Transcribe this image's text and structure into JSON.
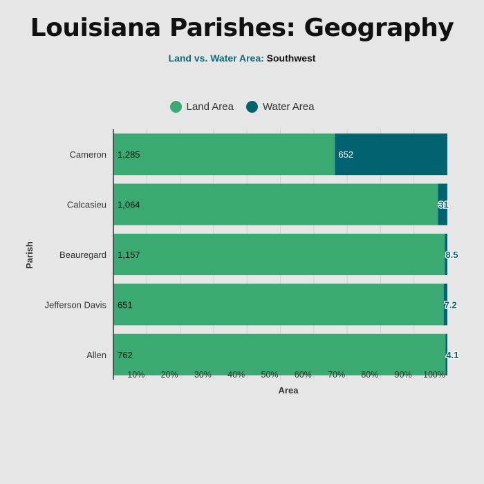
{
  "title": "Louisiana Parishes: Geography",
  "subtitle": {
    "prefix": "Land vs. Water Area:",
    "region": "Southwest"
  },
  "legend": [
    {
      "label": "Land Area",
      "color": "#3aa972"
    },
    {
      "label": "Water Area",
      "color": "#03626f"
    }
  ],
  "chart_data": {
    "type": "bar",
    "orientation": "horizontal",
    "stacked": "percent",
    "categories": [
      "Cameron",
      "Calcasieu",
      "Beauregard",
      "Jefferson Davis",
      "Allen"
    ],
    "series": [
      {
        "name": "Land Area",
        "values": [
          1285,
          1064,
          1157,
          651,
          762
        ],
        "labels": [
          "1,285",
          "1,064",
          "1,157",
          "651",
          "762"
        ],
        "color": "#3aa972"
      },
      {
        "name": "Water Area",
        "values": [
          652,
          31,
          8.5,
          7.2,
          4.1
        ],
        "labels": [
          "652",
          "31",
          "8.5",
          "7.2",
          "4.1"
        ],
        "color": "#03626f"
      }
    ],
    "xlabel": "Area",
    "ylabel": "Parish",
    "xticks": [
      "10%",
      "20%",
      "30%",
      "40%",
      "50%",
      "60%",
      "70%",
      "80%",
      "90%",
      "100%"
    ],
    "xlim": [
      0,
      100
    ],
    "grid": true,
    "legend_position": "top"
  }
}
